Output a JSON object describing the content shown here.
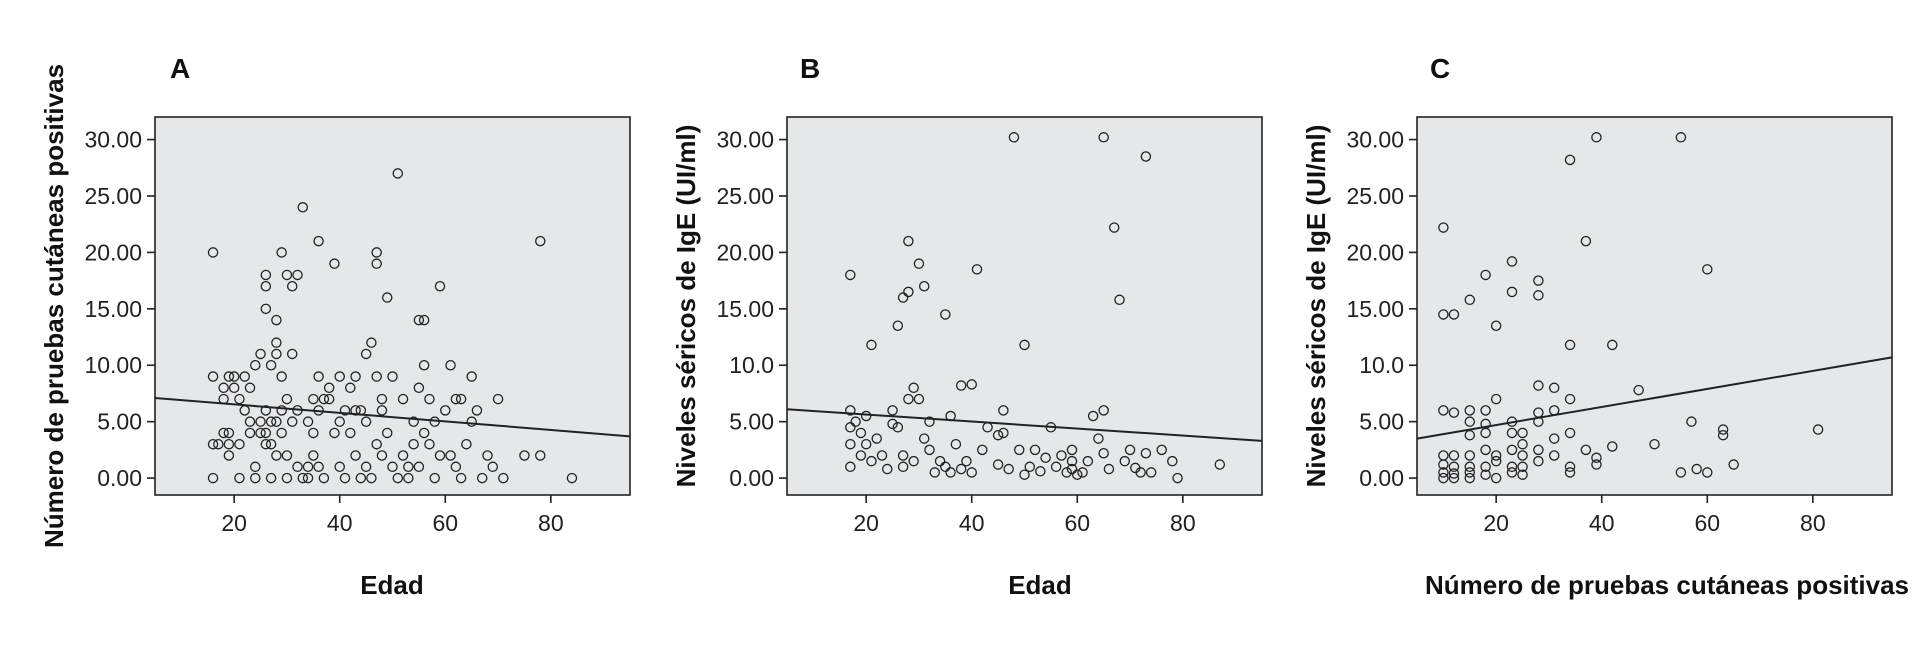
{
  "colors": {
    "plot_background": "#e6e7e9",
    "ink": "#222222"
  },
  "chart_data": [
    {
      "type": "scatter",
      "panel": "A",
      "xlabel": "Edad",
      "ylabel": "Número de pruebas cutáneas positivas",
      "xlim": [
        5,
        95
      ],
      "ylim": [
        -1.5,
        32
      ],
      "xticks": [
        20,
        40,
        60,
        80
      ],
      "yticks": [
        0,
        5,
        10,
        15,
        20,
        25,
        30
      ],
      "xtick_labels": [
        "20",
        "40",
        "60",
        "80"
      ],
      "ytick_labels": [
        "0.00",
        "5.00",
        "10.00",
        "15.00",
        "20.00",
        "25.00",
        "30.00"
      ],
      "grid": false,
      "fit_line": [
        [
          5,
          7.1
        ],
        [
          95,
          3.7
        ]
      ],
      "points": [
        [
          16,
          20
        ],
        [
          16,
          9
        ],
        [
          16,
          3
        ],
        [
          16,
          0
        ],
        [
          17,
          3
        ],
        [
          18,
          8
        ],
        [
          18,
          7
        ],
        [
          18,
          4
        ],
        [
          19,
          9
        ],
        [
          19,
          4
        ],
        [
          19,
          2
        ],
        [
          19,
          3
        ],
        [
          20,
          9
        ],
        [
          20,
          8
        ],
        [
          21,
          7
        ],
        [
          21,
          3
        ],
        [
          21,
          0
        ],
        [
          22,
          6
        ],
        [
          22,
          9
        ],
        [
          23,
          8
        ],
        [
          23,
          5
        ],
        [
          23,
          4
        ],
        [
          24,
          10
        ],
        [
          24,
          1
        ],
        [
          24,
          0
        ],
        [
          25,
          11
        ],
        [
          25,
          5
        ],
        [
          25,
          4
        ],
        [
          26,
          18
        ],
        [
          26,
          15
        ],
        [
          26,
          17
        ],
        [
          26,
          6
        ],
        [
          26,
          4
        ],
        [
          26,
          3
        ],
        [
          27,
          5
        ],
        [
          27,
          10
        ],
        [
          27,
          3
        ],
        [
          27,
          0
        ],
        [
          28,
          14
        ],
        [
          28,
          12
        ],
        [
          28,
          11
        ],
        [
          28,
          2
        ],
        [
          28,
          5
        ],
        [
          29,
          20
        ],
        [
          29,
          9
        ],
        [
          29,
          6
        ],
        [
          29,
          4
        ],
        [
          30,
          18
        ],
        [
          30,
          7
        ],
        [
          30,
          2
        ],
        [
          30,
          0
        ],
        [
          31,
          17
        ],
        [
          31,
          5
        ],
        [
          31,
          11
        ],
        [
          32,
          18
        ],
        [
          32,
          6
        ],
        [
          32,
          1
        ],
        [
          33,
          24
        ],
        [
          33,
          0
        ],
        [
          34,
          5
        ],
        [
          34,
          1
        ],
        [
          34,
          0
        ],
        [
          35,
          7
        ],
        [
          35,
          4
        ],
        [
          35,
          2
        ],
        [
          36,
          21
        ],
        [
          36,
          9
        ],
        [
          36,
          6
        ],
        [
          36,
          1
        ],
        [
          37,
          7
        ],
        [
          37,
          0
        ],
        [
          38,
          8
        ],
        [
          38,
          7
        ],
        [
          39,
          19
        ],
        [
          39,
          4
        ],
        [
          40,
          9
        ],
        [
          40,
          5
        ],
        [
          40,
          1
        ],
        [
          41,
          6
        ],
        [
          41,
          0
        ],
        [
          42,
          8
        ],
        [
          42,
          4
        ],
        [
          43,
          9
        ],
        [
          43,
          6
        ],
        [
          43,
          2
        ],
        [
          44,
          6
        ],
        [
          44,
          0
        ],
        [
          45,
          11
        ],
        [
          45,
          5
        ],
        [
          45,
          1
        ],
        [
          46,
          12
        ],
        [
          46,
          0
        ],
        [
          47,
          20
        ],
        [
          47,
          19
        ],
        [
          47,
          9
        ],
        [
          47,
          3
        ],
        [
          48,
          7
        ],
        [
          48,
          6
        ],
        [
          48,
          2
        ],
        [
          49,
          16
        ],
        [
          49,
          4
        ],
        [
          50,
          9
        ],
        [
          50,
          1
        ],
        [
          51,
          27
        ],
        [
          51,
          0
        ],
        [
          52,
          7
        ],
        [
          52,
          2
        ],
        [
          53,
          1
        ],
        [
          53,
          0
        ],
        [
          54,
          5
        ],
        [
          54,
          3
        ],
        [
          55,
          14
        ],
        [
          55,
          8
        ],
        [
          55,
          1
        ],
        [
          56,
          14
        ],
        [
          56,
          10
        ],
        [
          56,
          4
        ],
        [
          57,
          7
        ],
        [
          57,
          3
        ],
        [
          58,
          5
        ],
        [
          58,
          0
        ],
        [
          59,
          17
        ],
        [
          59,
          2
        ],
        [
          60,
          6
        ],
        [
          61,
          10
        ],
        [
          61,
          2
        ],
        [
          62,
          7
        ],
        [
          62,
          1
        ],
        [
          63,
          7
        ],
        [
          63,
          0
        ],
        [
          64,
          3
        ],
        [
          65,
          5
        ],
        [
          65,
          9
        ],
        [
          66,
          6
        ],
        [
          67,
          0
        ],
        [
          68,
          2
        ],
        [
          69,
          1
        ],
        [
          70,
          7
        ],
        [
          71,
          0
        ],
        [
          75,
          2
        ],
        [
          78,
          21
        ],
        [
          78,
          2
        ],
        [
          84,
          0
        ]
      ]
    },
    {
      "type": "scatter",
      "panel": "B",
      "xlabel": "Edad",
      "ylabel": "Niveles séricos de IgE (UI/ml)",
      "xlim": [
        5,
        95
      ],
      "ylim": [
        -1.5,
        32
      ],
      "xticks": [
        20,
        40,
        60,
        80
      ],
      "yticks": [
        0,
        5,
        10,
        15,
        20,
        25,
        30
      ],
      "xtick_labels": [
        "20",
        "40",
        "60",
        "80"
      ],
      "ytick_labels": [
        "0.00",
        "5.00",
        "10.0",
        "15.00",
        "20.00",
        "25.00",
        "30.00"
      ],
      "grid": false,
      "fit_line": [
        [
          5,
          6.1
        ],
        [
          95,
          3.3
        ]
      ],
      "points": [
        [
          17,
          18
        ],
        [
          17,
          6
        ],
        [
          17,
          4.5
        ],
        [
          17,
          3
        ],
        [
          17,
          1
        ],
        [
          18,
          5
        ],
        [
          19,
          4
        ],
        [
          19,
          2
        ],
        [
          20,
          5.5
        ],
        [
          20,
          3
        ],
        [
          21,
          11.8
        ],
        [
          21,
          1.5
        ],
        [
          22,
          3.5
        ],
        [
          23,
          2
        ],
        [
          24,
          0.8
        ],
        [
          25,
          6
        ],
        [
          25,
          4.8
        ],
        [
          26,
          13.5
        ],
        [
          26,
          4.5
        ],
        [
          27,
          2
        ],
        [
          27,
          16
        ],
        [
          27,
          1
        ],
        [
          28,
          21
        ],
        [
          28,
          16.5
        ],
        [
          28,
          7
        ],
        [
          29,
          8
        ],
        [
          29,
          1.5
        ],
        [
          30,
          19
        ],
        [
          30,
          7
        ],
        [
          31,
          17
        ],
        [
          31,
          3.5
        ],
        [
          32,
          2.5
        ],
        [
          32,
          5
        ],
        [
          33,
          0.5
        ],
        [
          34,
          1.5
        ],
        [
          35,
          14.5
        ],
        [
          35,
          1
        ],
        [
          36,
          5.5
        ],
        [
          36,
          0.5
        ],
        [
          37,
          3
        ],
        [
          38,
          8.2
        ],
        [
          38,
          0.8
        ],
        [
          39,
          1.5
        ],
        [
          40,
          8.3
        ],
        [
          40,
          0.5
        ],
        [
          41,
          18.5
        ],
        [
          42,
          2.5
        ],
        [
          43,
          4.5
        ],
        [
          45,
          3.8
        ],
        [
          45,
          1.2
        ],
        [
          46,
          6
        ],
        [
          46,
          4
        ],
        [
          47,
          0.8
        ],
        [
          48,
          30.2
        ],
        [
          49,
          2.5
        ],
        [
          50,
          11.8
        ],
        [
          50,
          0.3
        ],
        [
          51,
          1
        ],
        [
          52,
          2.5
        ],
        [
          53,
          0.6
        ],
        [
          54,
          1.8
        ],
        [
          55,
          4.5
        ],
        [
          56,
          1
        ],
        [
          57,
          2
        ],
        [
          58,
          0.5
        ],
        [
          59,
          1.5
        ],
        [
          59,
          2.5
        ],
        [
          59,
          0.8
        ],
        [
          60,
          0.3
        ],
        [
          61,
          0.5
        ],
        [
          62,
          1.5
        ],
        [
          63,
          5.5
        ],
        [
          64,
          3.5
        ],
        [
          65,
          6
        ],
        [
          65,
          2.2
        ],
        [
          65,
          30.2
        ],
        [
          66,
          0.8
        ],
        [
          67,
          22.2
        ],
        [
          68,
          15.8
        ],
        [
          69,
          1.5
        ],
        [
          70,
          2.5
        ],
        [
          71,
          0.9
        ],
        [
          72,
          0.5
        ],
        [
          73,
          28.5
        ],
        [
          73,
          2.2
        ],
        [
          74,
          0.5
        ],
        [
          76,
          2.5
        ],
        [
          78,
          1.5
        ],
        [
          79,
          0
        ],
        [
          87,
          1.2
        ]
      ]
    },
    {
      "type": "scatter",
      "panel": "C",
      "xlabel": "Número de pruebas cutáneas positivas",
      "ylabel": "Niveles séricos de IgE (UI/ml)",
      "xlim": [
        5,
        95
      ],
      "ylim": [
        -1.5,
        32
      ],
      "xticks": [
        20,
        40,
        60,
        80
      ],
      "yticks": [
        0,
        5,
        10,
        15,
        20,
        25,
        30
      ],
      "xtick_labels": [
        "20",
        "40",
        "60",
        "80"
      ],
      "ytick_labels": [
        "0.00",
        "5.00",
        "10.0",
        "15.00",
        "20.00",
        "25.00",
        "30.00"
      ],
      "grid": false,
      "fit_line": [
        [
          5,
          3.5
        ],
        [
          95,
          10.7
        ]
      ],
      "points": [
        [
          10,
          22.2
        ],
        [
          10,
          14.5
        ],
        [
          10,
          6
        ],
        [
          10,
          2
        ],
        [
          10,
          1.2
        ],
        [
          10,
          0.5
        ],
        [
          10,
          0
        ],
        [
          12,
          14.5
        ],
        [
          12,
          5.8
        ],
        [
          12,
          2
        ],
        [
          12,
          1
        ],
        [
          12,
          0.4
        ],
        [
          12,
          0
        ],
        [
          15,
          15.8
        ],
        [
          15,
          6
        ],
        [
          15,
          5
        ],
        [
          15,
          3.8
        ],
        [
          15,
          2
        ],
        [
          15,
          1
        ],
        [
          15,
          0.5
        ],
        [
          15,
          0
        ],
        [
          18,
          18
        ],
        [
          18,
          6
        ],
        [
          18,
          4.8
        ],
        [
          18,
          4
        ],
        [
          18,
          2.5
        ],
        [
          18,
          1
        ],
        [
          18,
          0.3
        ],
        [
          20,
          13.5
        ],
        [
          20,
          7
        ],
        [
          20,
          2
        ],
        [
          20,
          1.5
        ],
        [
          20,
          0
        ],
        [
          23,
          19.2
        ],
        [
          23,
          16.5
        ],
        [
          23,
          5
        ],
        [
          23,
          4
        ],
        [
          23,
          2.5
        ],
        [
          23,
          1
        ],
        [
          23,
          0.5
        ],
        [
          25,
          4
        ],
        [
          25,
          3
        ],
        [
          25,
          2
        ],
        [
          25,
          1
        ],
        [
          25,
          0.3
        ],
        [
          28,
          17.5
        ],
        [
          28,
          16.2
        ],
        [
          28,
          8.2
        ],
        [
          28,
          5.8
        ],
        [
          28,
          5
        ],
        [
          28,
          2.5
        ],
        [
          28,
          1.5
        ],
        [
          31,
          8
        ],
        [
          31,
          6
        ],
        [
          31,
          3.5
        ],
        [
          31,
          2
        ],
        [
          34,
          28.2
        ],
        [
          34,
          11.8
        ],
        [
          34,
          7
        ],
        [
          34,
          4
        ],
        [
          34,
          1
        ],
        [
          34,
          0.5
        ],
        [
          37,
          21
        ],
        [
          37,
          2.5
        ],
        [
          39,
          30.2
        ],
        [
          39,
          1.8
        ],
        [
          39,
          1.2
        ],
        [
          42,
          11.8
        ],
        [
          42,
          2.8
        ],
        [
          47,
          7.8
        ],
        [
          50,
          3
        ],
        [
          55,
          30.2
        ],
        [
          55,
          0.5
        ],
        [
          57,
          5
        ],
        [
          58,
          0.8
        ],
        [
          60,
          18.5
        ],
        [
          60,
          0.5
        ],
        [
          63,
          4.3
        ],
        [
          63,
          3.8
        ],
        [
          65,
          1.2
        ],
        [
          81,
          4.3
        ]
      ]
    }
  ]
}
